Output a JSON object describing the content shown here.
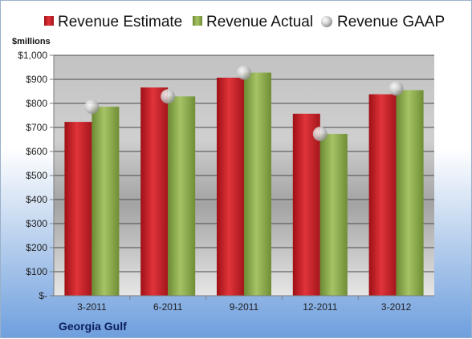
{
  "chart_data": {
    "type": "bar",
    "categories": [
      "3-2011",
      "6-2011",
      "9-2011",
      "12-2011",
      "3-2012"
    ],
    "series": [
      {
        "name": "Revenue Estimate",
        "type": "bar",
        "color": "#d0232a",
        "values": [
          723,
          866,
          907,
          757,
          838
        ]
      },
      {
        "name": "Revenue Actual",
        "type": "bar",
        "color": "#8fad4b",
        "values": [
          786,
          829,
          928,
          673,
          855
        ]
      },
      {
        "name": "Revenue GAAP",
        "type": "scatter",
        "color": "#c9c9c9",
        "values": [
          786,
          829,
          928,
          673,
          862
        ]
      }
    ],
    "ylabel": "$millions",
    "ylim": [
      0,
      1000
    ],
    "yticks": [
      {
        "value": 0,
        "label": "$-"
      },
      {
        "value": 100,
        "label": "$100"
      },
      {
        "value": 200,
        "label": "$200"
      },
      {
        "value": 300,
        "label": "$300"
      },
      {
        "value": 400,
        "label": "$400"
      },
      {
        "value": 500,
        "label": "$500"
      },
      {
        "value": 600,
        "label": "$600"
      },
      {
        "value": 700,
        "label": "$700"
      },
      {
        "value": 800,
        "label": "$800"
      },
      {
        "value": 900,
        "label": "$900"
      },
      {
        "value": 1000,
        "label": "$1,000"
      }
    ],
    "grid": true,
    "legend_position": "top",
    "company": "Georgia Gulf"
  }
}
